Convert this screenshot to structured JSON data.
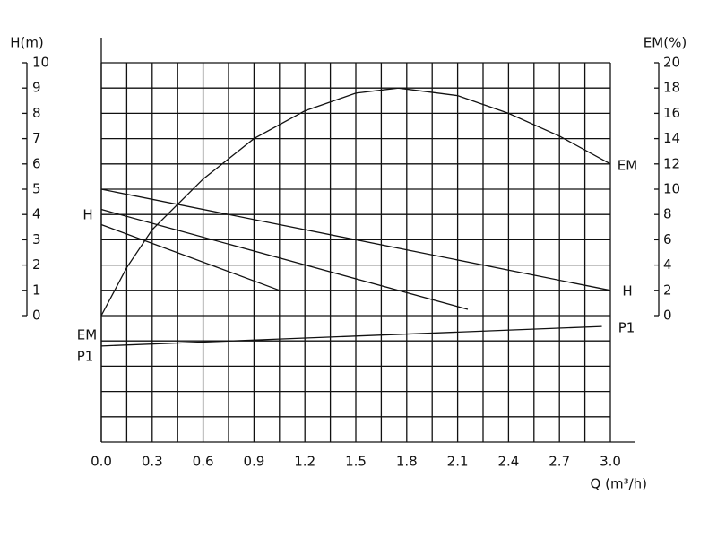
{
  "chart_data": {
    "type": "line",
    "y_label": "H(m)",
    "y2_label": "EM(%)",
    "x_label": "Q (m³/h)",
    "xlim": [
      0,
      3.0
    ],
    "xticks": [
      {
        "value": 0,
        "label": "0.0"
      },
      0.3,
      0.6,
      0.9,
      1.2,
      1.5,
      1.8,
      2.1,
      2.4,
      2.7,
      {
        "value": 3,
        "label": "3.0"
      }
    ],
    "ylim": [
      -5,
      10
    ],
    "yticks": [
      0,
      1,
      2,
      3,
      4,
      5,
      6,
      7,
      8,
      9,
      10
    ],
    "y2lim": [
      -10,
      20
    ],
    "y2ticks": [
      0,
      2,
      4,
      6,
      8,
      10,
      12,
      14,
      16,
      18,
      20
    ],
    "grid": true,
    "color": "#111111",
    "series": [
      {
        "axis": "y2",
        "x": [
          0,
          0.15,
          0.3,
          0.6,
          0.9,
          1.2,
          1.5,
          1.75,
          2.1,
          2.4,
          2.7,
          3.0
        ],
        "values": [
          0,
          3.8,
          6.8,
          10.8,
          14.0,
          16.2,
          17.6,
          18.0,
          17.4,
          16.0,
          14.2,
          12.0
        ]
      },
      {
        "x": [
          0,
          3.0
        ],
        "values": [
          5,
          1
        ]
      },
      {
        "x": [
          0,
          2.16
        ],
        "values": [
          4.2,
          0.25
        ]
      },
      {
        "x": [
          0,
          1.05
        ],
        "values": [
          3.6,
          1
        ]
      },
      {
        "x": [
          0,
          2.95
        ],
        "values": [
          -1.2,
          -0.43
        ]
      }
    ],
    "annotations": [
      "H",
      "H",
      "EM",
      "EM",
      "P1",
      "P1"
    ]
  }
}
